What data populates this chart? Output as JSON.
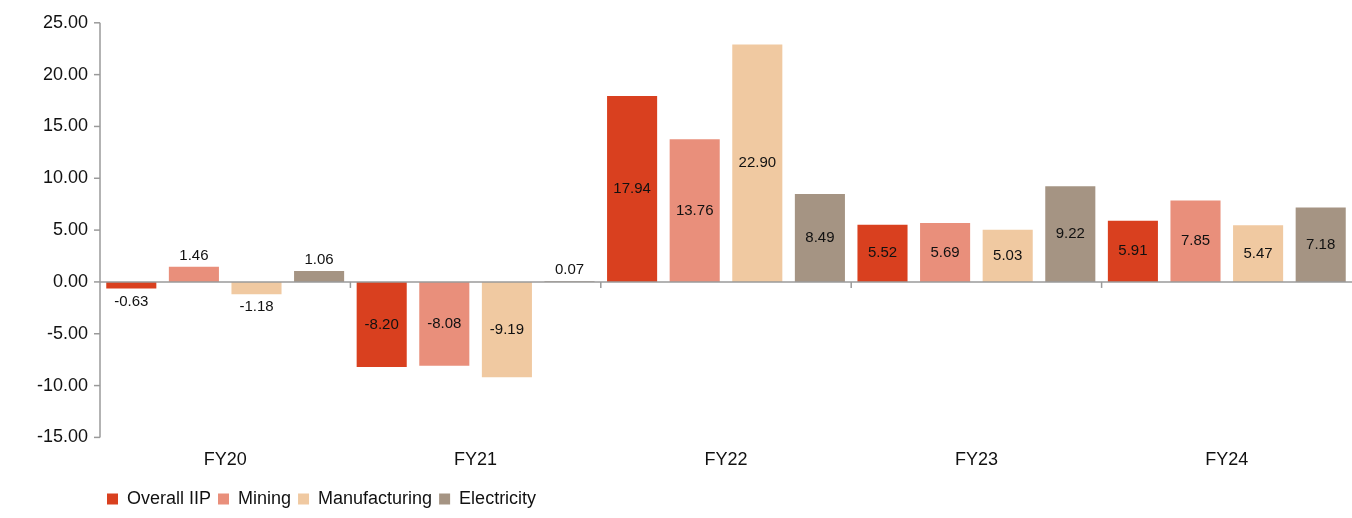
{
  "chart_data": {
    "type": "bar",
    "categories": [
      "FY20",
      "FY21",
      "FY22",
      "FY23",
      "FY24"
    ],
    "series": [
      {
        "name": "Overall IIP",
        "color": "#d9401f",
        "values": [
          -0.63,
          -8.2,
          17.94,
          5.52,
          5.91
        ],
        "value_labels": [
          "-0.63",
          "-8.20",
          "17.94",
          "5.52",
          "5.91"
        ]
      },
      {
        "name": "Mining",
        "color": "#e98f7b",
        "values": [
          1.46,
          -8.08,
          13.76,
          5.69,
          7.85
        ],
        "value_labels": [
          "1.46",
          "-8.08",
          "13.76",
          "5.69",
          "7.85"
        ]
      },
      {
        "name": "Manufacturing",
        "color": "#f0c9a1",
        "values": [
          -1.18,
          -9.19,
          22.9,
          5.03,
          5.47
        ],
        "value_labels": [
          "-1.18",
          "-9.19",
          "22.90",
          "5.03",
          "5.47"
        ]
      },
      {
        "name": "Electricity",
        "color": "#a59483",
        "values": [
          1.06,
          0.07,
          8.49,
          9.22,
          7.18
        ],
        "value_labels": [
          "1.06",
          "0.07",
          "8.49",
          "9.22",
          "7.18"
        ]
      }
    ],
    "ylim": [
      -15,
      25
    ],
    "yticks": [
      {
        "value": -15,
        "label": "-15.00"
      },
      {
        "value": -10,
        "label": "-10.00"
      },
      {
        "value": -5,
        "label": "-5.00"
      },
      {
        "value": 0,
        "label": "0.00"
      },
      {
        "value": 5,
        "label": "5.00"
      },
      {
        "value": 10,
        "label": "10.00"
      },
      {
        "value": 15,
        "label": "15.00"
      },
      {
        "value": 20,
        "label": "20.00"
      },
      {
        "value": 25,
        "label": "25.00"
      }
    ],
    "legend": "bottom"
  }
}
